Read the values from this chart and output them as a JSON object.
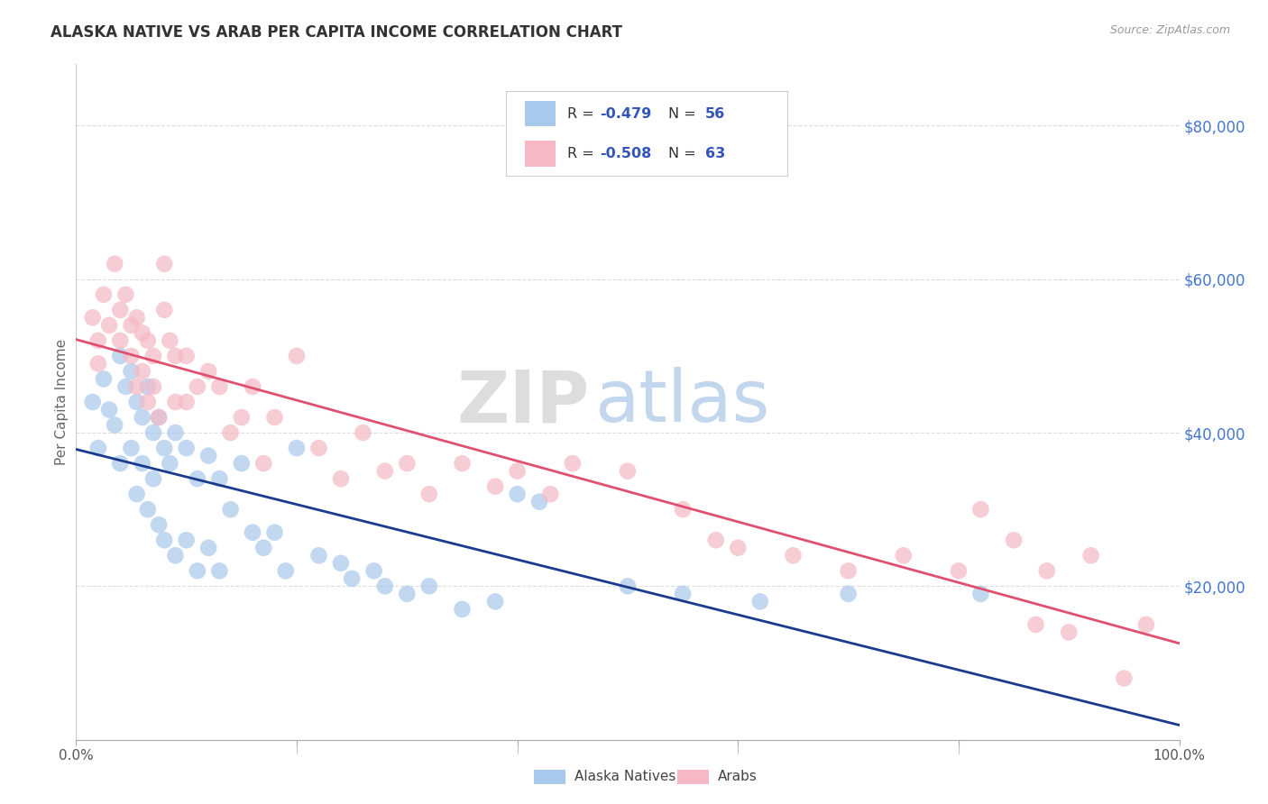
{
  "title": "ALASKA NATIVE VS ARAB PER CAPITA INCOME CORRELATION CHART",
  "source": "Source: ZipAtlas.com",
  "ylabel": "Per Capita Income",
  "ytick_labels": [
    "$20,000",
    "$40,000",
    "$60,000",
    "$80,000"
  ],
  "ytick_values": [
    20000,
    40000,
    60000,
    80000
  ],
  "ymin": 0,
  "ymax": 88000,
  "xmin": 0,
  "xmax": 1.0,
  "legend_labels": [
    "Alaska Natives",
    "Arabs"
  ],
  "blue_color": "#A8C8EC",
  "pink_color": "#F5B8C4",
  "blue_line_color": "#1A3A8C",
  "pink_line_color": "#E05070",
  "title_color": "#333333",
  "source_color": "#999999",
  "axis_tick_color": "#555555",
  "right_tick_color": "#4477CC",
  "legend_text_color": "#3355BB",
  "grid_color": "#DDDDDD",
  "background_color": "#FFFFFF",
  "alaska_x": [
    0.015,
    0.02,
    0.025,
    0.03,
    0.035,
    0.04,
    0.04,
    0.045,
    0.05,
    0.05,
    0.055,
    0.055,
    0.06,
    0.06,
    0.065,
    0.065,
    0.07,
    0.07,
    0.075,
    0.075,
    0.08,
    0.08,
    0.085,
    0.09,
    0.09,
    0.1,
    0.1,
    0.11,
    0.11,
    0.12,
    0.12,
    0.13,
    0.13,
    0.14,
    0.15,
    0.16,
    0.17,
    0.18,
    0.19,
    0.2,
    0.22,
    0.24,
    0.25,
    0.27,
    0.28,
    0.3,
    0.32,
    0.35,
    0.38,
    0.4,
    0.42,
    0.5,
    0.55,
    0.62,
    0.7,
    0.82
  ],
  "alaska_y": [
    44000,
    38000,
    47000,
    43000,
    41000,
    50000,
    36000,
    46000,
    48000,
    38000,
    44000,
    32000,
    42000,
    36000,
    46000,
    30000,
    40000,
    34000,
    42000,
    28000,
    38000,
    26000,
    36000,
    40000,
    24000,
    38000,
    26000,
    34000,
    22000,
    37000,
    25000,
    34000,
    22000,
    30000,
    36000,
    27000,
    25000,
    27000,
    22000,
    38000,
    24000,
    23000,
    21000,
    22000,
    20000,
    19000,
    20000,
    17000,
    18000,
    32000,
    31000,
    20000,
    19000,
    18000,
    19000,
    19000
  ],
  "arab_x": [
    0.015,
    0.02,
    0.02,
    0.025,
    0.03,
    0.035,
    0.04,
    0.04,
    0.045,
    0.05,
    0.05,
    0.055,
    0.055,
    0.06,
    0.06,
    0.065,
    0.065,
    0.07,
    0.07,
    0.075,
    0.08,
    0.08,
    0.085,
    0.09,
    0.09,
    0.1,
    0.1,
    0.11,
    0.12,
    0.13,
    0.14,
    0.15,
    0.16,
    0.17,
    0.18,
    0.2,
    0.22,
    0.24,
    0.26,
    0.28,
    0.3,
    0.32,
    0.35,
    0.38,
    0.4,
    0.43,
    0.45,
    0.5,
    0.55,
    0.58,
    0.6,
    0.65,
    0.7,
    0.75,
    0.8,
    0.82,
    0.85,
    0.87,
    0.88,
    0.9,
    0.92,
    0.95,
    0.97
  ],
  "arab_y": [
    55000,
    52000,
    49000,
    58000,
    54000,
    62000,
    56000,
    52000,
    58000,
    54000,
    50000,
    55000,
    46000,
    53000,
    48000,
    52000,
    44000,
    50000,
    46000,
    42000,
    62000,
    56000,
    52000,
    50000,
    44000,
    50000,
    44000,
    46000,
    48000,
    46000,
    40000,
    42000,
    46000,
    36000,
    42000,
    50000,
    38000,
    34000,
    40000,
    35000,
    36000,
    32000,
    36000,
    33000,
    35000,
    32000,
    36000,
    35000,
    30000,
    26000,
    25000,
    24000,
    22000,
    24000,
    22000,
    30000,
    26000,
    15000,
    22000,
    14000,
    24000,
    8000,
    15000
  ]
}
